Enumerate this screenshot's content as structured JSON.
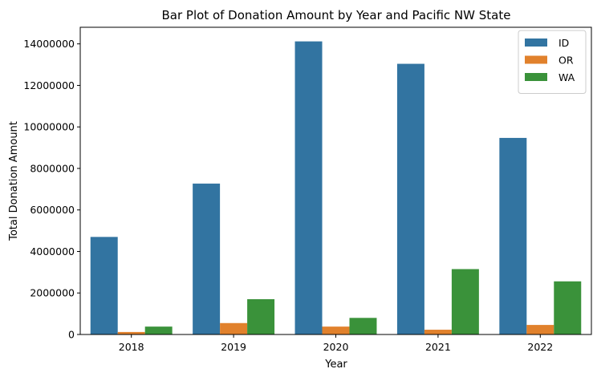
{
  "chart_data": {
    "type": "bar",
    "title": "Bar Plot of Donation Amount by Year and Pacific NW State",
    "xlabel": "Year",
    "ylabel": "Total Donation Amount",
    "categories": [
      "2018",
      "2019",
      "2020",
      "2021",
      "2022"
    ],
    "series": [
      {
        "name": "ID",
        "color": "#3274a1",
        "values": [
          4700000,
          7270000,
          14120000,
          13040000,
          9470000
        ]
      },
      {
        "name": "OR",
        "color": "#e1812c",
        "values": [
          120000,
          550000,
          380000,
          230000,
          460000
        ]
      },
      {
        "name": "WA",
        "color": "#3a923a",
        "values": [
          380000,
          1700000,
          800000,
          3150000,
          2560000
        ]
      }
    ],
    "ylim": [
      0,
      14800000
    ],
    "yticks": [
      0,
      2000000,
      4000000,
      6000000,
      8000000,
      10000000,
      12000000,
      14000000
    ],
    "ytick_labels": [
      "0",
      "2000000",
      "4000000",
      "6000000",
      "8000000",
      "10000000",
      "12000000",
      "14000000"
    ],
    "grid": false,
    "legend_position": "top-right"
  }
}
